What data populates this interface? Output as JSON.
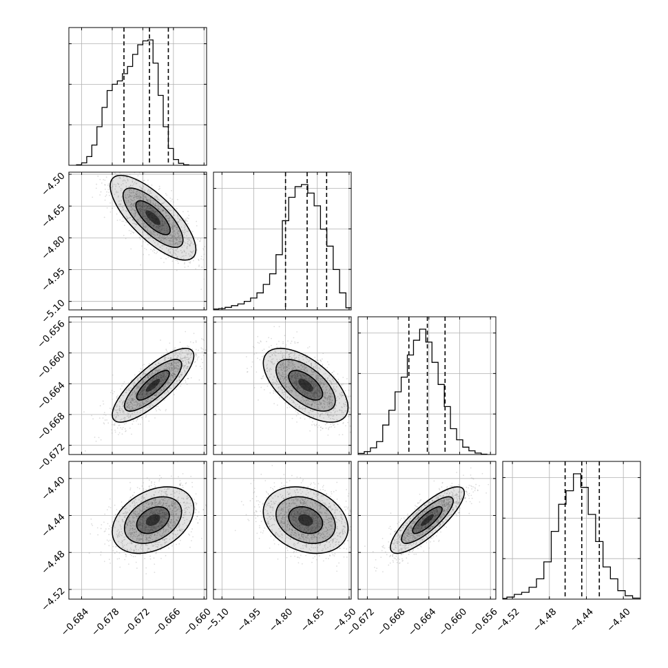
{
  "chart_data": {
    "type": "corner",
    "parameters": 4,
    "grid": true,
    "axis_ticks": [
      [
        "−0.684",
        "−0.678",
        "−0.672",
        "−0.666",
        "−0.660"
      ],
      [
        "−5.10",
        "−4.95",
        "−4.80",
        "−4.65",
        "−4.50"
      ],
      [
        "−0.672",
        "−0.668",
        "−0.664",
        "−0.660",
        "−0.656"
      ],
      [
        "−4.52",
        "−4.48",
        "−4.44",
        "−4.40"
      ]
    ],
    "axis_tick_values": [
      [
        -0.684,
        -0.678,
        -0.672,
        -0.666,
        -0.66
      ],
      [
        -5.1,
        -4.95,
        -4.8,
        -4.65,
        -4.5
      ],
      [
        -0.672,
        -0.668,
        -0.664,
        -0.66,
        -0.656
      ],
      [
        -4.52,
        -4.48,
        -4.44,
        -4.4
      ]
    ],
    "axis_ranges": [
      [
        -0.6865,
        -0.6595
      ],
      [
        -5.14,
        -4.49
      ],
      [
        -0.6732,
        -0.6553
      ],
      [
        -4.5305,
        -4.3815
      ]
    ],
    "quantiles": [
      [
        -0.6757,
        -0.6707,
        -0.667
      ],
      [
        -4.8,
        -4.698,
        -4.606
      ],
      [
        -0.6666,
        -0.6642,
        -0.6619
      ],
      [
        -4.463,
        -4.445,
        -4.426
      ]
    ],
    "histograms": [
      {
        "bins": [
          -0.6845,
          -0.6835,
          -0.6825,
          -0.6815,
          -0.6805,
          -0.6795,
          -0.6785,
          -0.6775,
          -0.6765,
          -0.6755,
          -0.6745,
          -0.6735,
          -0.6725,
          -0.6715,
          -0.6705,
          -0.6695,
          -0.6685,
          -0.6675,
          -0.6665,
          -0.6655,
          -0.6645,
          -0.6635,
          -0.6625,
          -0.6615,
          -0.6605
        ],
        "counts": [
          1,
          5,
          18,
          42,
          80,
          120,
          155,
          168,
          175,
          190,
          205,
          230,
          250,
          258,
          260,
          212,
          145,
          80,
          35,
          12,
          4,
          1,
          0,
          0,
          0
        ]
      },
      {
        "bins": [
          -5.13,
          -5.1,
          -5.07,
          -5.04,
          -5.01,
          -4.98,
          -4.95,
          -4.92,
          -4.89,
          -4.86,
          -4.83,
          -4.8,
          -4.77,
          -4.74,
          -4.71,
          -4.68,
          -4.65,
          -4.62,
          -4.59,
          -4.56,
          -4.53,
          -4.5
        ],
        "counts": [
          2,
          3,
          6,
          10,
          14,
          20,
          28,
          40,
          60,
          85,
          130,
          210,
          265,
          290,
          295,
          275,
          245,
          190,
          150,
          95,
          40,
          5
        ]
      },
      {
        "bins": [
          -0.6728,
          -0.672,
          -0.6712,
          -0.6704,
          -0.6696,
          -0.6688,
          -0.668,
          -0.6672,
          -0.6664,
          -0.6656,
          -0.6648,
          -0.664,
          -0.6632,
          -0.6624,
          -0.6616,
          -0.6608,
          -0.66,
          -0.6592,
          -0.6584,
          -0.6576,
          -0.6568
        ],
        "counts": [
          3,
          8,
          18,
          35,
          80,
          120,
          170,
          210,
          270,
          310,
          340,
          305,
          250,
          190,
          130,
          70,
          40,
          20,
          10,
          4,
          1
        ]
      },
      {
        "bins": [
          -4.53,
          -4.522,
          -4.514,
          -4.506,
          -4.498,
          -4.49,
          -4.482,
          -4.474,
          -4.466,
          -4.458,
          -4.45,
          -4.442,
          -4.434,
          -4.426,
          -4.418,
          -4.41,
          -4.402,
          -4.394,
          -4.386
        ],
        "counts": [
          2,
          6,
          14,
          20,
          35,
          60,
          110,
          200,
          280,
          320,
          370,
          330,
          250,
          170,
          95,
          60,
          25,
          10,
          3
        ]
      }
    ],
    "scatter_panels": [
      {
        "row": 1,
        "col": 0,
        "center": [
          -0.67,
          -4.705
        ],
        "sigma": [
          0.0042,
          0.1
        ],
        "rho": -0.75
      },
      {
        "row": 2,
        "col": 0,
        "center": [
          -0.67,
          -0.6642
        ],
        "sigma": [
          0.004,
          0.0024
        ],
        "rho": 0.8
      },
      {
        "row": 2,
        "col": 1,
        "center": [
          -4.705,
          -0.6642
        ],
        "sigma": [
          0.1,
          0.0024
        ],
        "rho": -0.6
      },
      {
        "row": 3,
        "col": 0,
        "center": [
          -0.67,
          -4.445
        ],
        "sigma": [
          0.004,
          0.018
        ],
        "rho": 0.35
      },
      {
        "row": 3,
        "col": 1,
        "center": [
          -4.705,
          -4.445
        ],
        "sigma": [
          0.1,
          0.018
        ],
        "rho": -0.25
      },
      {
        "row": 3,
        "col": 2,
        "center": [
          -0.6642,
          -4.445
        ],
        "sigma": [
          0.0024,
          0.018
        ],
        "rho": 0.82
      }
    ],
    "colors": {
      "axes": "#000000",
      "grid": "#b0b0b0",
      "points": "#9a9a9a",
      "contour": "#000000",
      "density": "#000000"
    }
  }
}
